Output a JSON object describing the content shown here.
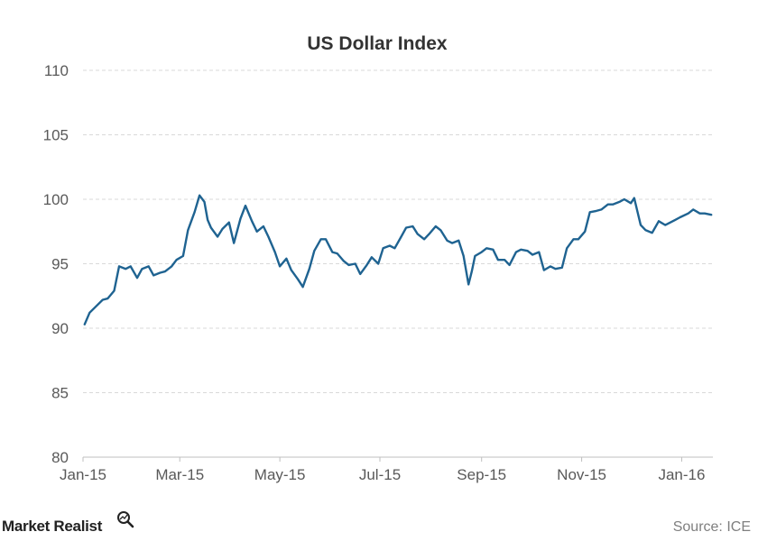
{
  "chart_data": {
    "type": "line",
    "title": "US Dollar  Index",
    "xlabel": "",
    "ylabel": "",
    "ylim": [
      80,
      110
    ],
    "yticks": [
      "80",
      "85",
      "90",
      "95",
      "100",
      "105",
      "110"
    ],
    "x_tick_labels": [
      "Jan-15",
      "Mar-15",
      "May-15",
      "Jul-15",
      "Sep-15",
      "Nov-15",
      "Jan-16"
    ],
    "grid": true,
    "line_color": "#1f6391",
    "series": [
      {
        "x_dates": [
          "2015-01-02",
          "2015-01-05",
          "2015-01-09",
          "2015-01-13",
          "2015-01-16",
          "2015-01-20",
          "2015-01-23",
          "2015-01-27",
          "2015-01-30",
          "2015-02-03",
          "2015-02-06",
          "2015-02-10",
          "2015-02-13",
          "2015-02-17",
          "2015-02-20",
          "2015-02-24",
          "2015-02-27",
          "2015-03-03",
          "2015-03-06",
          "2015-03-10",
          "2015-03-13",
          "2015-03-16",
          "2015-03-18",
          "2015-03-20",
          "2015-03-24",
          "2015-03-27",
          "2015-03-31",
          "2015-04-03",
          "2015-04-07",
          "2015-04-10",
          "2015-04-14",
          "2015-04-17",
          "2015-04-21",
          "2015-04-24",
          "2015-04-28",
          "2015-05-01",
          "2015-05-05",
          "2015-05-08",
          "2015-05-12",
          "2015-05-15",
          "2015-05-19",
          "2015-05-22",
          "2015-05-26",
          "2015-05-29",
          "2015-06-02",
          "2015-06-05",
          "2015-06-09",
          "2015-06-12",
          "2015-06-16",
          "2015-06-19",
          "2015-06-23",
          "2015-06-26",
          "2015-06-30",
          "2015-07-03",
          "2015-07-07",
          "2015-07-10",
          "2015-07-14",
          "2015-07-17",
          "2015-07-21",
          "2015-07-24",
          "2015-07-28",
          "2015-07-31",
          "2015-08-04",
          "2015-08-07",
          "2015-08-11",
          "2015-08-14",
          "2015-08-18",
          "2015-08-21",
          "2015-08-24",
          "2015-08-26",
          "2015-08-28",
          "2015-09-01",
          "2015-09-04",
          "2015-09-08",
          "2015-09-11",
          "2015-09-15",
          "2015-09-18",
          "2015-09-22",
          "2015-09-25",
          "2015-09-29",
          "2015-10-02",
          "2015-10-06",
          "2015-10-09",
          "2015-10-13",
          "2015-10-16",
          "2015-10-20",
          "2015-10-23",
          "2015-10-27",
          "2015-10-30",
          "2015-11-03",
          "2015-11-06",
          "2015-11-10",
          "2015-11-13",
          "2015-11-17",
          "2015-11-20",
          "2015-11-24",
          "2015-11-27",
          "2015-12-01",
          "2015-12-03",
          "2015-12-07",
          "2015-12-10",
          "2015-12-14",
          "2015-12-18",
          "2015-12-22",
          "2015-12-28",
          "2015-12-31",
          "2016-01-05",
          "2016-01-08",
          "2016-01-12",
          "2016-01-15",
          "2016-01-19"
        ],
        "values": [
          90.3,
          91.2,
          91.7,
          92.2,
          92.3,
          92.9,
          94.8,
          94.6,
          94.8,
          93.9,
          94.6,
          94.8,
          94.1,
          94.3,
          94.4,
          94.8,
          95.3,
          95.6,
          97.6,
          99.0,
          100.3,
          99.8,
          98.4,
          97.8,
          97.1,
          97.7,
          98.2,
          96.6,
          98.5,
          99.5,
          98.3,
          97.5,
          97.9,
          97.1,
          95.9,
          94.8,
          95.4,
          94.5,
          93.8,
          93.2,
          94.6,
          96.0,
          96.9,
          96.9,
          95.9,
          95.8,
          95.2,
          94.9,
          95.0,
          94.2,
          94.9,
          95.5,
          95.0,
          96.2,
          96.4,
          96.2,
          97.1,
          97.8,
          97.9,
          97.3,
          96.9,
          97.3,
          97.9,
          97.6,
          96.8,
          96.6,
          96.8,
          95.6,
          93.4,
          94.4,
          95.6,
          95.9,
          96.2,
          96.1,
          95.3,
          95.3,
          94.9,
          95.9,
          96.1,
          96.0,
          95.7,
          95.9,
          94.5,
          94.8,
          94.6,
          94.7,
          96.2,
          96.9,
          96.9,
          97.5,
          99.0,
          99.1,
          99.2,
          99.6,
          99.6,
          99.8,
          100.0,
          99.7,
          100.1,
          98.0,
          97.6,
          97.4,
          98.3,
          98.0,
          98.4,
          98.6,
          98.9,
          99.2,
          98.9,
          98.9,
          98.8
        ]
      }
    ]
  },
  "logo": {
    "text": "Market Realist"
  },
  "source": "Source: ICE"
}
